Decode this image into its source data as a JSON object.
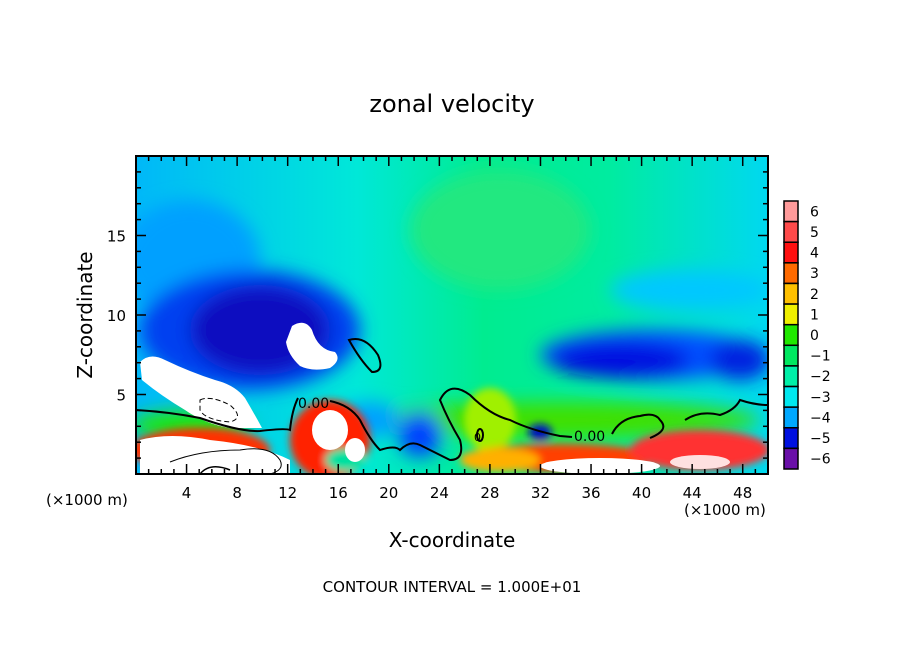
{
  "chart_data": {
    "type": "heatmap",
    "subtype": "filled-contour",
    "title": "zonal velocity",
    "xlabel": "X-coordinate",
    "ylabel": "Z-coordinate",
    "x_unit_label": "(×1000 m)",
    "y_unit_label": "(×1000 m)",
    "xlim": [
      0,
      50
    ],
    "ylim": [
      0,
      20
    ],
    "xticks": [
      4,
      8,
      12,
      16,
      20,
      24,
      28,
      32,
      36,
      40,
      44,
      48
    ],
    "yticks": [
      5,
      10,
      15
    ],
    "footer": "CONTOUR INTERVAL = 1.000E+01",
    "contour_labels": [
      "0.00",
      "0.00",
      "0"
    ],
    "colorbar": {
      "ticks": [
        6,
        5,
        4,
        3,
        2,
        1,
        0,
        -1,
        -2,
        -3,
        -4,
        -5,
        -6
      ],
      "colors": [
        "#ff9a9a",
        "#ff4a4a",
        "#ff1010",
        "#ff6a00",
        "#ffc000",
        "#f0f000",
        "#90ee00",
        "#20e800",
        "#00e860",
        "#00f0a8",
        "#00e8f0",
        "#00a8ff",
        "#0050ff",
        "#0010e0",
        "#1a1aa0",
        "#6a10a8"
      ]
    },
    "features": [
      {
        "name": "strong westward jet (< -6)",
        "x": [
          0.5,
          10
        ],
        "z": [
          3,
          7
        ]
      },
      {
        "name": "westward core (< -6)",
        "x": [
          12,
          16
        ],
        "z": [
          7,
          9
        ]
      },
      {
        "name": "eastern westward layer (-4 to -5)",
        "x": [
          30,
          50
        ],
        "z": [
          5,
          8
        ]
      },
      {
        "name": "low-level eastward flow (> 6)",
        "x": [
          0,
          50
        ],
        "z": [
          0,
          3
        ]
      },
      {
        "name": "upper-level weak flow (0 to -1)",
        "x": [
          24,
          40
        ],
        "z": [
          10,
          20
        ]
      }
    ]
  }
}
